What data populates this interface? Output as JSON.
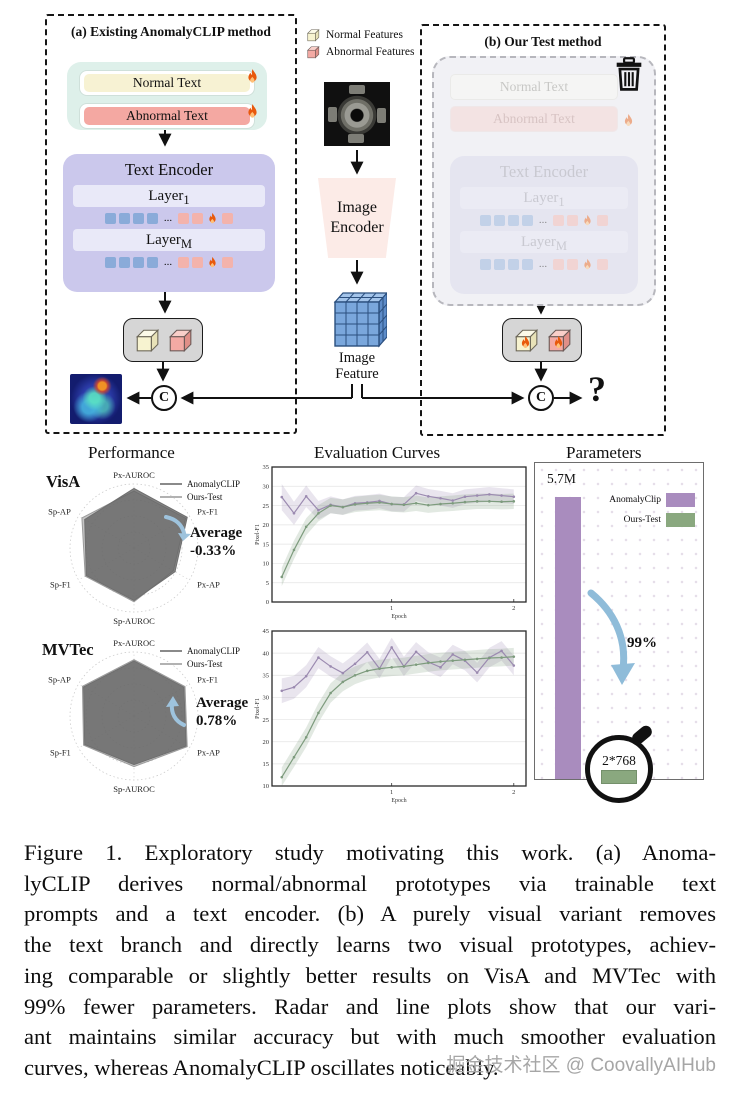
{
  "diagram": {
    "panel_a_title": "(a) Existing AnomalyCLIP method",
    "panel_b_title": "(b) Our Test method",
    "normal_text": "Normal Text",
    "abnormal_text": "Abnormal Text",
    "text_encoder": "Text Encoder",
    "layer_word": "Layer",
    "layer1_sub": "1",
    "layerM_sub": "M",
    "dots": "...",
    "b_normal_text": "Normal Text",
    "b_abnormal_text": "Abnormal Text",
    "b_text_encoder": "Text Encoder",
    "legend_normal": "Normal Features",
    "legend_abnormal": "Abnormal Features",
    "image_encoder_line1": "Image",
    "image_encoder_line2": "Encoder",
    "image_feature_line1": "Image",
    "image_feature_line2": "Feature",
    "concat_label": "C",
    "question_mark": "?"
  },
  "charts": {
    "performance_title": "Performance",
    "curves_title": "Evaluation Curves",
    "parameters_title": "Parameters",
    "visa_label": "VisA",
    "mvtec_label": "MVTec",
    "radar_legend": [
      "AnomalyCLIP",
      "Ours-Test"
    ],
    "radar_colors": [
      "#8a8a8a",
      "#b2b2b2"
    ],
    "visa_annotation_label": "Average",
    "visa_annotation_value": "-0.33%",
    "mvtec_annotation_label": "Average",
    "mvtec_annotation_value": "0.78%",
    "params": {
      "bar_label": "5.7M",
      "legend": [
        {
          "name": "AnomalyClip",
          "color": "#a98cbe"
        },
        {
          "name": "Ours-Test",
          "color": "#8aa87f"
        }
      ],
      "reduction": "99%",
      "magnifier_label": "2*768"
    }
  },
  "chart_data": [
    {
      "id": "radar-visa",
      "type": "radar",
      "dataset": "VisA",
      "axes": [
        "Px-AUROC",
        "Px-F1",
        "Px-AP",
        "Sp-AUROC",
        "Sp-F1",
        "Sp-AP"
      ],
      "values_note": "normalized radius 0-1 (tick numbers illegible in source)",
      "series": [
        {
          "name": "AnomalyCLIP",
          "values": [
            0.93,
            0.96,
            0.74,
            0.82,
            0.86,
            0.89
          ]
        },
        {
          "name": "Ours-Test",
          "values": [
            0.89,
            0.93,
            0.71,
            0.84,
            0.88,
            0.94
          ]
        }
      ],
      "annotation": {
        "label": "Average",
        "value": "-0.33%"
      }
    },
    {
      "id": "radar-mvtec",
      "type": "radar",
      "dataset": "MVTec",
      "axes": [
        "Px-AUROC",
        "Px-F1",
        "Px-AP",
        "Sp-AUROC",
        "Sp-F1",
        "Sp-AP"
      ],
      "values_note": "normalized radius 0-1 (tick numbers illegible in source)",
      "series": [
        {
          "name": "AnomalyCLIP",
          "values": [
            0.86,
            0.9,
            0.94,
            0.76,
            0.89,
            0.91
          ]
        },
        {
          "name": "Ours-Test",
          "values": [
            0.88,
            0.92,
            0.96,
            0.79,
            0.91,
            0.93
          ]
        }
      ],
      "annotation": {
        "label": "Average",
        "value": "0.78%"
      }
    },
    {
      "id": "line-visa",
      "type": "line",
      "title": "Evaluation Curves",
      "x_label": "Epoch",
      "y_label": "Pixel-F1",
      "xlim": [
        0.02,
        2.1
      ],
      "ylim": [
        0,
        35
      ],
      "yticks": [
        0,
        5,
        10,
        15,
        20,
        25,
        30,
        35
      ],
      "xticks": [
        1,
        2
      ],
      "x": [
        0.1,
        0.2,
        0.3,
        0.4,
        0.5,
        0.6,
        0.7,
        0.8,
        0.9,
        1.0,
        1.1,
        1.2,
        1.3,
        1.4,
        1.5,
        1.6,
        1.7,
        1.8,
        1.9,
        2.0
      ],
      "series": [
        {
          "name": "AnomalyCLIP",
          "color": "#9b8ab0",
          "values": [
            27.2,
            23.0,
            27.4,
            23.8,
            25.2,
            24.6,
            25.6,
            25.8,
            26.2,
            25.4,
            25.3,
            28.2,
            27.4,
            26.9,
            26.3,
            27.3,
            27.6,
            27.9,
            27.6,
            27.3
          ],
          "band": [
            3.4,
            3.0,
            2.8,
            2.4,
            2.2,
            2.0,
            1.9,
            1.9,
            1.9,
            1.9,
            1.9,
            2.0,
            1.9,
            1.9,
            1.9,
            1.9,
            1.9,
            1.9,
            1.9,
            1.9
          ]
        },
        {
          "name": "Ours-Test",
          "color": "#7d9b7d",
          "values": [
            6.5,
            13.5,
            19.5,
            23.0,
            25.0,
            24.6,
            25.3,
            25.6,
            25.8,
            25.4,
            25.2,
            25.6,
            25.1,
            25.4,
            25.6,
            25.9,
            26.1,
            26.1,
            26.0,
            26.1
          ],
          "band": [
            2.4,
            2.4,
            2.2,
            2.1,
            2.0,
            2.0,
            2.0,
            2.0,
            2.0,
            2.0,
            2.0,
            2.0,
            2.0,
            2.0,
            2.0,
            2.0,
            2.0,
            2.0,
            2.0,
            2.0
          ]
        }
      ]
    },
    {
      "id": "line-mvtec",
      "type": "line",
      "x_label": "Epoch",
      "y_label": "Pixel-F1",
      "xlim": [
        0.02,
        2.1
      ],
      "ylim": [
        10,
        45
      ],
      "yticks": [
        10,
        15,
        20,
        25,
        30,
        35,
        40,
        45
      ],
      "xticks": [
        1,
        2
      ],
      "x": [
        0.1,
        0.2,
        0.3,
        0.4,
        0.5,
        0.6,
        0.7,
        0.8,
        0.9,
        1.0,
        1.1,
        1.2,
        1.3,
        1.4,
        1.5,
        1.6,
        1.7,
        1.8,
        1.9,
        2.0
      ],
      "series": [
        {
          "name": "AnomalyCLIP",
          "color": "#9b8ab0",
          "values": [
            31.5,
            32.3,
            34.8,
            39.0,
            37.0,
            35.5,
            37.6,
            40.2,
            36.5,
            41.3,
            37.0,
            40.3,
            38.0,
            36.8,
            39.7,
            38.3,
            35.6,
            39.0,
            40.5,
            37.2
          ],
          "band": [
            2.8,
            2.6,
            2.5,
            2.4,
            2.3,
            2.2,
            2.2,
            2.2,
            2.2,
            2.2,
            2.2,
            2.2,
            2.2,
            2.2,
            2.2,
            2.2,
            2.2,
            2.2,
            2.2,
            2.2
          ]
        },
        {
          "name": "Ours-Test",
          "color": "#7d9b7d",
          "values": [
            12.0,
            16.5,
            21.0,
            26.5,
            31.0,
            33.5,
            35.0,
            36.0,
            36.5,
            36.8,
            37.0,
            37.4,
            37.8,
            38.1,
            38.3,
            38.5,
            38.7,
            38.9,
            39.0,
            39.2
          ],
          "band": [
            2.2,
            2.2,
            2.2,
            2.2,
            2.2,
            2.1,
            2.0,
            2.0,
            2.0,
            2.0,
            2.0,
            2.0,
            2.0,
            2.0,
            2.0,
            2.0,
            2.0,
            2.0,
            2.0,
            2.0
          ]
        }
      ]
    },
    {
      "id": "bar-params",
      "type": "bar",
      "title": "Parameters",
      "categories": [
        "AnomalyClip",
        "Ours-Test"
      ],
      "values_label": [
        "5.7M",
        "2*768"
      ],
      "colors": [
        "#a98cbe",
        "#8aa87f"
      ],
      "annotation": "99%"
    }
  ],
  "caption": {
    "lines": [
      "Figure 1.  Exploratory study motivating this work.  (a) Anoma-",
      "lyCLIP derives normal/abnormal prototypes via trainable text",
      "prompts and a text encoder.  (b) A purely visual variant removes",
      "the text branch and directly learns two visual prototypes, achiev-",
      "ing comparable or slightly better results on VisA and MVTec with",
      "99% fewer parameters.  Radar and line plots show that our vari-",
      "ant maintains similar accuracy but with much smoother evaluation",
      "curves, whereas AnomalyCLIP oscillates noticeably."
    ]
  },
  "watermark": "掘金技术社区 @ CoovallyAIHub"
}
